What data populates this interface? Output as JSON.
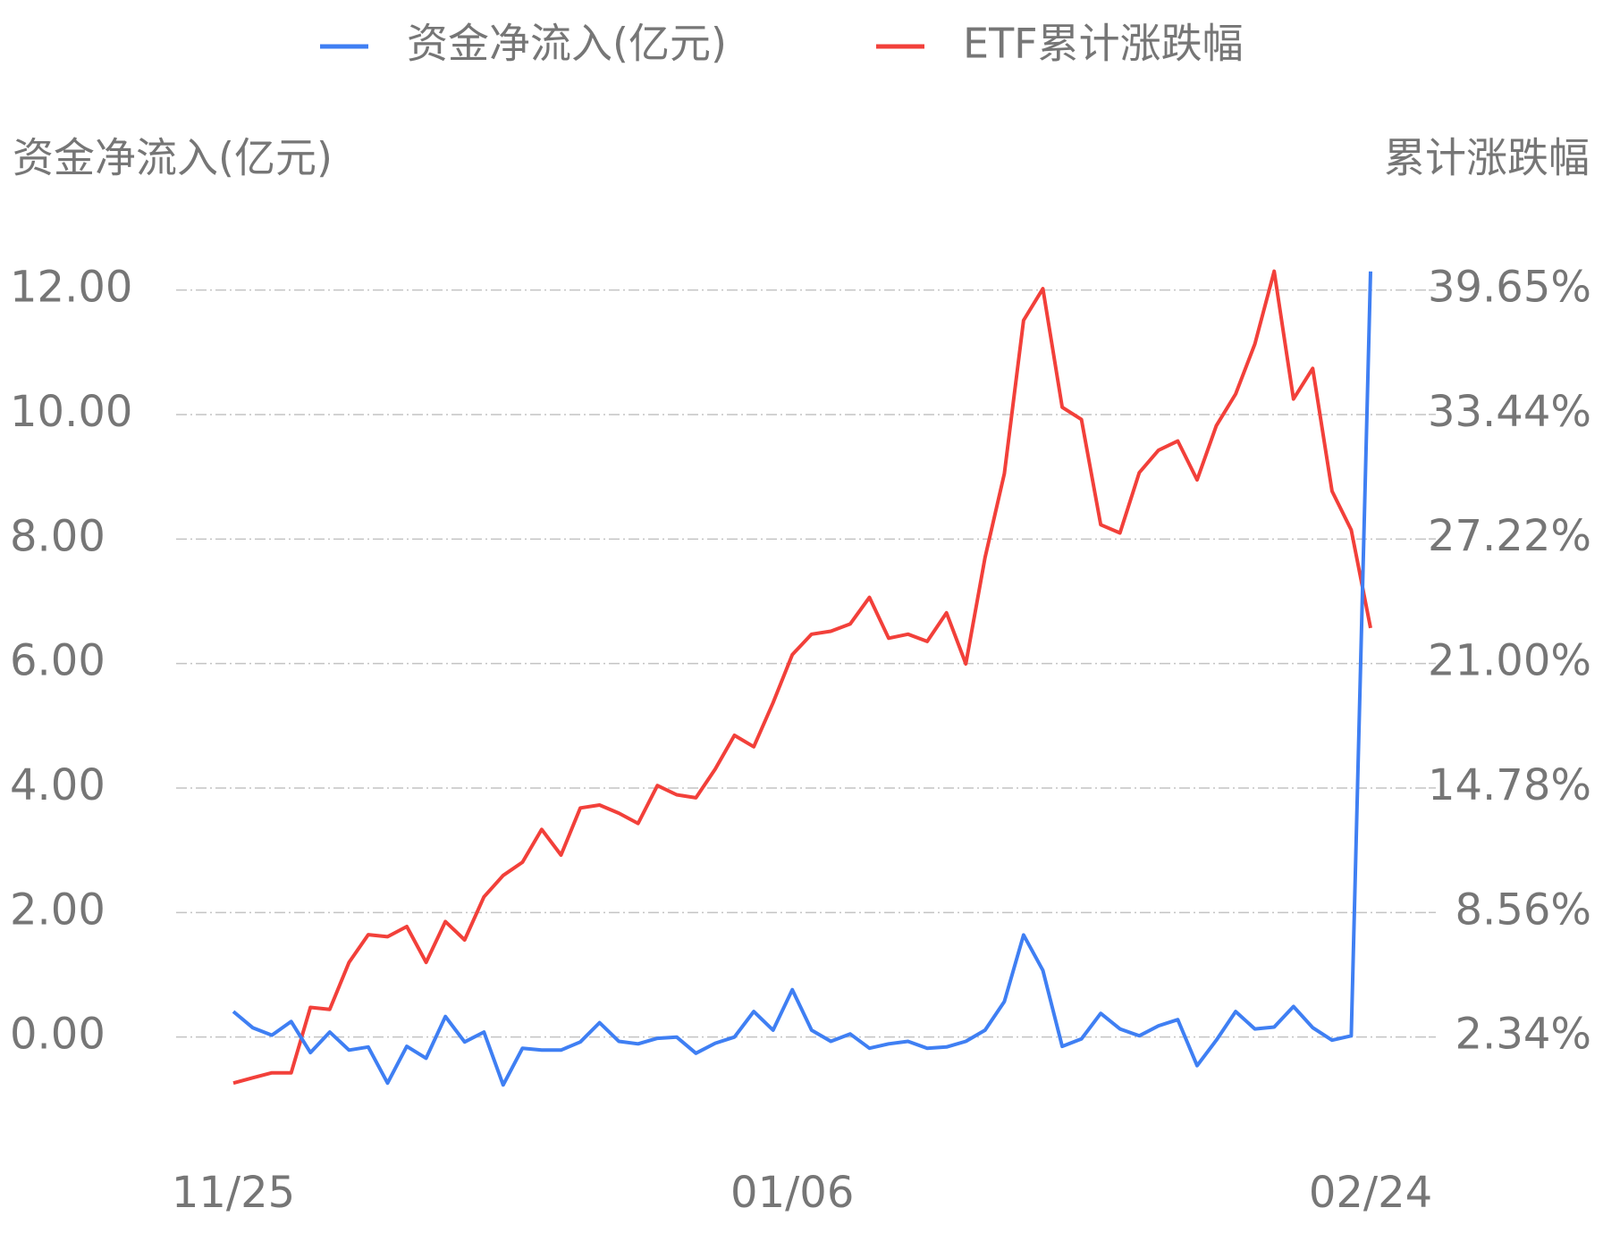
{
  "chart_data": {
    "type": "line",
    "y_axis_title": "资金净流入(亿元)",
    "y2_axis_title": "累计涨跌幅",
    "categories": [
      "11/25",
      null,
      null,
      null,
      null,
      null,
      null,
      null,
      null,
      null,
      null,
      null,
      null,
      null,
      null,
      null,
      null,
      null,
      null,
      null,
      null,
      null,
      null,
      null,
      null,
      null,
      null,
      null,
      null,
      "01/06",
      null,
      null,
      null,
      null,
      null,
      null,
      null,
      null,
      null,
      null,
      null,
      null,
      null,
      null,
      null,
      null,
      null,
      null,
      null,
      null,
      null,
      null,
      null,
      null,
      null,
      null,
      null,
      null,
      null,
      "02/24"
    ],
    "series": [
      {
        "name": "资金净流入(亿元)",
        "color": "#3f7ff3",
        "values": [
          0.41,
          0.15,
          0.03,
          0.25,
          -0.25,
          0.08,
          -0.21,
          -0.16,
          -0.74,
          -0.15,
          -0.34,
          0.33,
          -0.08,
          0.08,
          -0.77,
          -0.18,
          -0.21,
          -0.21,
          -0.08,
          0.23,
          -0.07,
          -0.11,
          -0.02,
          0.0,
          -0.26,
          -0.1,
          0.0,
          0.41,
          0.11,
          0.76,
          0.11,
          -0.07,
          0.05,
          -0.18,
          -0.11,
          -0.07,
          -0.18,
          -0.16,
          -0.07,
          0.11,
          0.57,
          1.64,
          1.07,
          -0.15,
          -0.03,
          0.38,
          0.13,
          0.02,
          0.18,
          0.28,
          -0.46,
          -0.05,
          0.41,
          0.13,
          0.16,
          0.49,
          0.15,
          -0.05,
          0.02,
          12.3
        ]
      },
      {
        "name": "ETF累计涨跌幅",
        "color": "#f2403a",
        "axis": "y2",
        "values": [
          0.04,
          0.3,
          0.55,
          0.55,
          3.82,
          3.72,
          6.07,
          7.45,
          7.35,
          7.86,
          6.07,
          8.11,
          7.19,
          9.34,
          10.41,
          11.07,
          12.71,
          11.43,
          13.78,
          13.93,
          13.52,
          13.01,
          14.9,
          14.44,
          14.29,
          15.72,
          17.41,
          16.84,
          19.04,
          21.44,
          22.46,
          22.61,
          22.97,
          24.3,
          22.26,
          22.46,
          22.1,
          23.53,
          20.98,
          26.29,
          30.48,
          38.14,
          39.72,
          33.8,
          33.19,
          27.93,
          27.52,
          30.53,
          31.65,
          32.11,
          30.17,
          32.88,
          34.46,
          36.96,
          40.59,
          34.21,
          35.74,
          29.61,
          27.67,
          22.77
        ]
      }
    ],
    "ylim": [
      -2,
      13
    ],
    "yticks": [
      {
        "value": 0,
        "label": "0.00"
      },
      {
        "value": 2,
        "label": "2.00"
      },
      {
        "value": 4,
        "label": "4.00"
      },
      {
        "value": 6,
        "label": "6.00"
      },
      {
        "value": 8,
        "label": "8.00"
      },
      {
        "value": 10,
        "label": "10.00"
      },
      {
        "value": 12,
        "label": "12.00"
      }
    ],
    "y2lim": [
      -3.88,
      42.76
    ],
    "y2ticks": [
      {
        "value": 2.34,
        "label": "2.34%"
      },
      {
        "value": 8.56,
        "label": "8.56%"
      },
      {
        "value": 14.78,
        "label": "14.78%"
      },
      {
        "value": 21.0,
        "label": "21.00%"
      },
      {
        "value": 27.22,
        "label": "27.22%"
      },
      {
        "value": 33.44,
        "label": "33.44%"
      },
      {
        "value": 39.65,
        "label": "39.65%"
      }
    ],
    "grid": true,
    "legend": "top"
  }
}
